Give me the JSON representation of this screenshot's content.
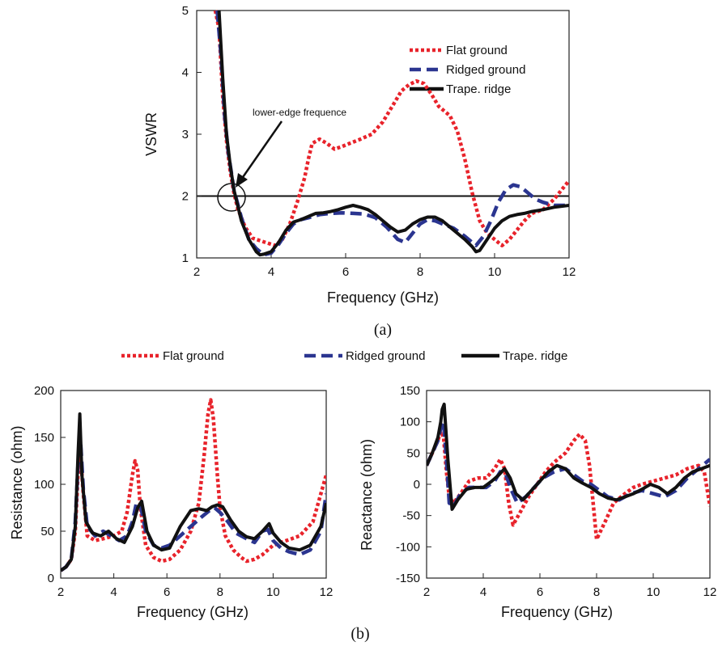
{
  "figure": {
    "panel_a_label": "(a)",
    "panel_b_label": "(b)",
    "legend_b": [
      "Flat ground",
      "Ridged ground",
      "Trape. ridge"
    ]
  },
  "colors": {
    "flat": "#e8232b",
    "ridged": "#2b3590",
    "trape": "#111111"
  },
  "chart_data": [
    {
      "type": "line",
      "xlabel": "Frequency (GHz)",
      "ylabel": "VSWR",
      "xlim": [
        2,
        12
      ],
      "ylim": [
        1,
        5
      ],
      "xticks": [
        2,
        4,
        6,
        8,
        10,
        12
      ],
      "yticks": [
        1,
        2,
        3,
        4,
        5
      ],
      "legend": "top-right",
      "grid": false,
      "reference_line": 2,
      "annotation": "lower-edge frequence",
      "series": [
        {
          "name": "Flat ground",
          "style": "dotted",
          "x": [
            2.5,
            2.6,
            2.7,
            2.8,
            2.9,
            3.0,
            3.1,
            3.3,
            3.5,
            3.7,
            3.9,
            4.1,
            4.3,
            4.5,
            4.7,
            4.9,
            5.0,
            5.1,
            5.3,
            5.5,
            5.7,
            5.9,
            6.1,
            6.4,
            6.7,
            7.0,
            7.3,
            7.5,
            7.7,
            7.9,
            8.1,
            8.3,
            8.5,
            8.8,
            9.0,
            9.2,
            9.4,
            9.6,
            9.8,
            10.0,
            10.2,
            10.4,
            10.6,
            10.8,
            11.0,
            11.3,
            11.6,
            12.0
          ],
          "y": [
            5.0,
            4.7,
            3.6,
            2.9,
            2.4,
            2.05,
            1.8,
            1.5,
            1.32,
            1.28,
            1.24,
            1.2,
            1.3,
            1.55,
            1.9,
            2.3,
            2.6,
            2.85,
            2.92,
            2.85,
            2.76,
            2.8,
            2.85,
            2.92,
            3.0,
            3.2,
            3.5,
            3.7,
            3.8,
            3.86,
            3.82,
            3.65,
            3.45,
            3.3,
            3.05,
            2.6,
            2.05,
            1.6,
            1.4,
            1.3,
            1.2,
            1.3,
            1.45,
            1.6,
            1.72,
            1.78,
            1.95,
            2.25
          ]
        },
        {
          "name": "Ridged ground",
          "style": "dashed",
          "x": [
            2.55,
            2.65,
            2.75,
            2.85,
            3.0,
            3.2,
            3.4,
            3.6,
            3.8,
            4.0,
            4.2,
            4.4,
            4.6,
            4.8,
            5.0,
            5.3,
            5.6,
            5.9,
            6.2,
            6.5,
            6.8,
            7.1,
            7.4,
            7.6,
            7.8,
            8.0,
            8.2,
            8.4,
            8.6,
            8.9,
            9.2,
            9.5,
            9.7,
            9.9,
            10.1,
            10.3,
            10.5,
            10.7,
            10.9,
            11.1,
            11.3,
            11.6,
            12.0
          ],
          "y": [
            5.0,
            4.3,
            3.3,
            2.7,
            2.1,
            1.65,
            1.3,
            1.15,
            1.05,
            1.08,
            1.22,
            1.4,
            1.55,
            1.62,
            1.65,
            1.7,
            1.72,
            1.73,
            1.72,
            1.71,
            1.65,
            1.5,
            1.3,
            1.25,
            1.4,
            1.55,
            1.62,
            1.6,
            1.55,
            1.48,
            1.35,
            1.2,
            1.35,
            1.6,
            1.9,
            2.1,
            2.18,
            2.15,
            2.05,
            1.95,
            1.9,
            1.85,
            1.85
          ]
        },
        {
          "name": "Trape. ridge",
          "style": "solid",
          "x": [
            2.6,
            2.7,
            2.8,
            2.9,
            3.0,
            3.2,
            3.4,
            3.6,
            3.7,
            3.8,
            4.0,
            4.2,
            4.4,
            4.6,
            4.8,
            5.0,
            5.2,
            5.4,
            5.6,
            5.8,
            6.0,
            6.2,
            6.4,
            6.6,
            6.8,
            7.0,
            7.2,
            7.4,
            7.6,
            7.8,
            8.0,
            8.2,
            8.4,
            8.6,
            8.8,
            9.0,
            9.2,
            9.4,
            9.5,
            9.6,
            9.8,
            10.0,
            10.2,
            10.4,
            10.6,
            10.8,
            11.0,
            11.3,
            11.6,
            12.0
          ],
          "y": [
            5.0,
            3.9,
            3.0,
            2.5,
            2.1,
            1.6,
            1.3,
            1.1,
            1.05,
            1.06,
            1.1,
            1.25,
            1.45,
            1.58,
            1.62,
            1.67,
            1.72,
            1.73,
            1.75,
            1.78,
            1.82,
            1.85,
            1.82,
            1.78,
            1.7,
            1.6,
            1.5,
            1.42,
            1.45,
            1.55,
            1.62,
            1.66,
            1.66,
            1.6,
            1.5,
            1.4,
            1.3,
            1.18,
            1.1,
            1.12,
            1.3,
            1.48,
            1.6,
            1.67,
            1.7,
            1.72,
            1.75,
            1.78,
            1.82,
            1.85
          ]
        }
      ]
    },
    {
      "type": "line",
      "xlabel": "Frequency (GHz)",
      "ylabel": "Resistance (ohm)",
      "xlim": [
        2,
        12
      ],
      "ylim": [
        0,
        200
      ],
      "xticks": [
        2,
        4,
        6,
        8,
        10,
        12
      ],
      "yticks": [
        0,
        50,
        100,
        150,
        200
      ],
      "legend": "top",
      "grid": false,
      "series": [
        {
          "name": "Flat ground",
          "style": "dotted",
          "x": [
            2.0,
            2.2,
            2.4,
            2.55,
            2.65,
            2.75,
            2.85,
            3.0,
            3.3,
            3.6,
            4.0,
            4.3,
            4.5,
            4.7,
            4.8,
            4.9,
            5.0,
            5.2,
            5.5,
            5.8,
            6.1,
            6.5,
            6.9,
            7.2,
            7.4,
            7.55,
            7.65,
            7.75,
            7.9,
            8.0,
            8.2,
            8.5,
            8.8,
            9.0,
            9.3,
            9.6,
            10.0,
            10.5,
            11.0,
            11.5,
            11.8,
            12.0
          ],
          "y": [
            8,
            12,
            20,
            50,
            110,
            130,
            90,
            45,
            40,
            42,
            45,
            50,
            70,
            110,
            125,
            115,
            75,
            35,
            22,
            18,
            20,
            30,
            50,
            80,
            130,
            175,
            190,
            170,
            110,
            75,
            45,
            30,
            22,
            18,
            20,
            25,
            35,
            40,
            45,
            60,
            90,
            110
          ]
        },
        {
          "name": "Ridged ground",
          "style": "dashed",
          "x": [
            2.0,
            2.2,
            2.4,
            2.55,
            2.65,
            2.75,
            2.85,
            3.0,
            3.3,
            3.6,
            3.9,
            4.2,
            4.5,
            4.7,
            4.85,
            5.0,
            5.2,
            5.5,
            5.8,
            6.1,
            6.5,
            6.9,
            7.3,
            7.6,
            7.8,
            8.0,
            8.3,
            8.6,
            9.0,
            9.3,
            9.6,
            9.8,
            10.0,
            10.3,
            10.6,
            11.0,
            11.4,
            11.8,
            12.0
          ],
          "y": [
            8,
            12,
            20,
            60,
            120,
            145,
            95,
            55,
            45,
            50,
            45,
            40,
            45,
            60,
            80,
            78,
            50,
            35,
            32,
            35,
            45,
            55,
            65,
            72,
            75,
            70,
            60,
            48,
            42,
            38,
            50,
            52,
            40,
            32,
            28,
            25,
            30,
            50,
            90
          ]
        },
        {
          "name": "Trape. ridge",
          "style": "solid",
          "x": [
            2.0,
            2.2,
            2.4,
            2.55,
            2.65,
            2.72,
            2.8,
            2.95,
            3.2,
            3.5,
            3.8,
            4.1,
            4.4,
            4.7,
            4.9,
            5.05,
            5.25,
            5.5,
            5.8,
            6.1,
            6.5,
            6.9,
            7.2,
            7.5,
            7.7,
            7.9,
            8.1,
            8.4,
            8.7,
            9.0,
            9.3,
            9.6,
            9.85,
            10.0,
            10.3,
            10.6,
            11.0,
            11.4,
            11.8,
            12.0
          ],
          "y": [
            8,
            12,
            20,
            55,
            130,
            175,
            110,
            60,
            48,
            45,
            50,
            42,
            38,
            55,
            75,
            82,
            50,
            35,
            30,
            32,
            55,
            72,
            74,
            72,
            76,
            78,
            76,
            62,
            50,
            44,
            42,
            50,
            58,
            48,
            38,
            32,
            30,
            35,
            55,
            80
          ]
        }
      ]
    },
    {
      "type": "line",
      "xlabel": "Frequency (GHz)",
      "ylabel": "Reactance (ohm)",
      "xlim": [
        2,
        12
      ],
      "ylim": [
        -150,
        150
      ],
      "xticks": [
        2,
        4,
        6,
        8,
        10,
        12
      ],
      "yticks": [
        -150,
        -100,
        -50,
        0,
        50,
        100,
        150
      ],
      "legend": "top",
      "grid": false,
      "series": [
        {
          "name": "Flat ground",
          "style": "dotted",
          "x": [
            2.0,
            2.2,
            2.4,
            2.5,
            2.6,
            2.7,
            2.8,
            2.95,
            3.2,
            3.5,
            3.8,
            4.1,
            4.4,
            4.6,
            4.75,
            4.9,
            5.05,
            5.3,
            5.6,
            5.9,
            6.2,
            6.5,
            6.9,
            7.2,
            7.4,
            7.6,
            7.75,
            7.9,
            8.0,
            8.3,
            8.6,
            9.0,
            9.3,
            9.6,
            10.0,
            10.4,
            10.8,
            11.2,
            11.6,
            11.8,
            12.0
          ],
          "y": [
            30,
            50,
            70,
            85,
            75,
            20,
            -20,
            -30,
            -15,
            5,
            10,
            10,
            25,
            40,
            25,
            -30,
            -65,
            -45,
            -20,
            0,
            20,
            35,
            50,
            70,
            80,
            70,
            30,
            -40,
            -88,
            -60,
            -30,
            -15,
            -5,
            0,
            5,
            10,
            15,
            25,
            30,
            20,
            -35
          ]
        },
        {
          "name": "Ridged ground",
          "style": "dashed",
          "x": [
            2.0,
            2.2,
            2.4,
            2.5,
            2.6,
            2.7,
            2.8,
            2.95,
            3.2,
            3.5,
            3.8,
            4.1,
            4.4,
            4.6,
            4.8,
            5.0,
            5.2,
            5.5,
            5.8,
            6.1,
            6.5,
            6.9,
            7.2,
            7.5,
            7.8,
            8.1,
            8.4,
            8.8,
            9.2,
            9.6,
            10.0,
            10.4,
            10.8,
            11.2,
            11.6,
            12.0
          ],
          "y": [
            30,
            50,
            70,
            90,
            100,
            40,
            -30,
            -35,
            -15,
            -5,
            -5,
            -5,
            5,
            20,
            15,
            -10,
            -30,
            -20,
            -5,
            10,
            20,
            25,
            15,
            5,
            0,
            -10,
            -20,
            -25,
            -15,
            -10,
            -15,
            -20,
            -10,
            10,
            25,
            40
          ]
        },
        {
          "name": "Trape. ridge",
          "style": "solid",
          "x": [
            2.0,
            2.2,
            2.4,
            2.5,
            2.55,
            2.62,
            2.75,
            2.9,
            3.1,
            3.4,
            3.7,
            4.0,
            4.3,
            4.55,
            4.75,
            4.95,
            5.15,
            5.4,
            5.7,
            6.0,
            6.3,
            6.6,
            6.9,
            7.2,
            7.5,
            7.8,
            8.1,
            8.4,
            8.7,
            9.0,
            9.3,
            9.6,
            9.9,
            10.2,
            10.5,
            10.8,
            11.1,
            11.4,
            11.7,
            12.0
          ],
          "y": [
            30,
            50,
            75,
            100,
            120,
            128,
            40,
            -40,
            -25,
            -8,
            -5,
            -5,
            5,
            15,
            25,
            10,
            -15,
            -25,
            -10,
            5,
            20,
            30,
            25,
            10,
            2,
            -5,
            -15,
            -22,
            -25,
            -20,
            -15,
            -8,
            0,
            -5,
            -15,
            -5,
            10,
            20,
            25,
            30
          ]
        }
      ]
    }
  ]
}
